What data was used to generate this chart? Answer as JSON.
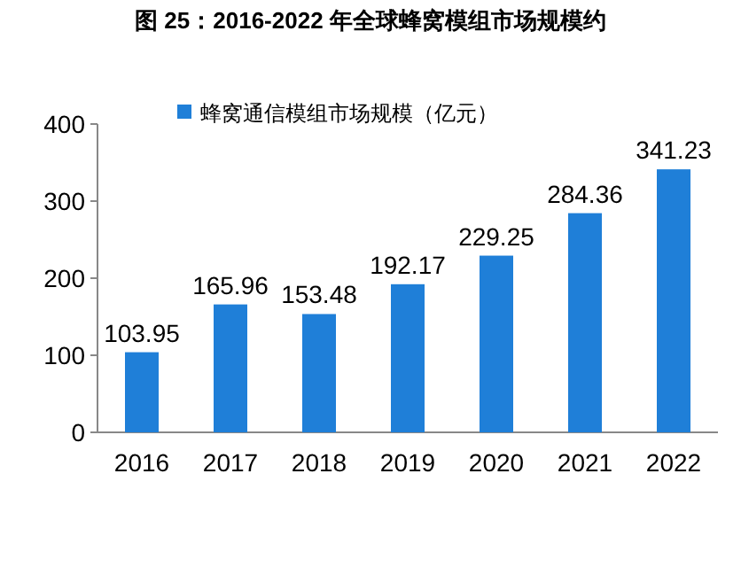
{
  "chart_data": {
    "type": "bar",
    "title": "图 25：2016-2022 年全球蜂窝模组市场规模约",
    "categories": [
      "2016",
      "2017",
      "2018",
      "2019",
      "2020",
      "2021",
      "2022"
    ],
    "series": [
      {
        "name": "蜂窝通信模组市场规模（亿元）",
        "color": "#1f7fd8",
        "values": [
          103.95,
          165.96,
          153.48,
          192.17,
          229.25,
          284.36,
          341.23
        ]
      }
    ],
    "ylim": [
      0,
      400
    ],
    "yticks": [
      0,
      100,
      200,
      300,
      400
    ],
    "data_labels": true,
    "legend": "top left",
    "grid": false
  }
}
